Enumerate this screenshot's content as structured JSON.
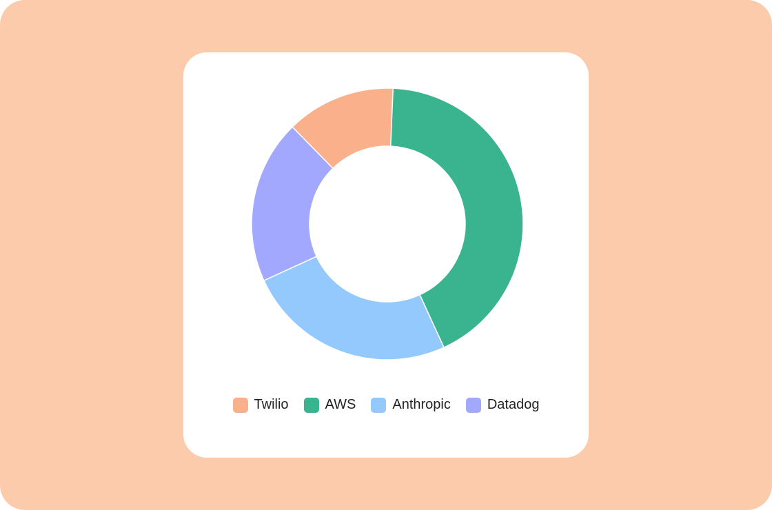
{
  "chart_data": {
    "type": "donut",
    "categories": [
      "Twilio",
      "AWS",
      "Anthropic",
      "Datadog"
    ],
    "values": [
      13,
      42.5,
      25,
      19.5
    ],
    "colors": [
      "#f9b08b",
      "#3ab38f",
      "#93c9fd",
      "#a3a8ff"
    ]
  }
}
